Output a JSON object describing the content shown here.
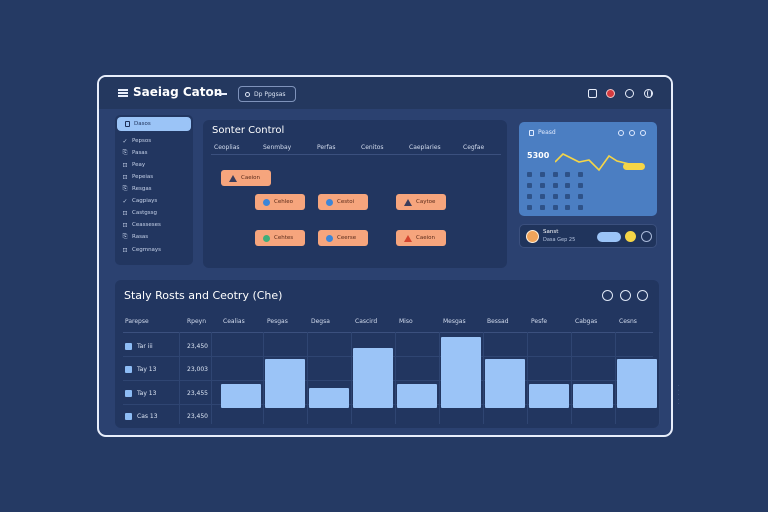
{
  "header": {
    "title": "Saeiag Caton",
    "search_label": "Dp Ppgsas"
  },
  "sidebar": {
    "active": "Dasos",
    "items": [
      {
        "label": "Pepsos",
        "glyph": "✓"
      },
      {
        "label": "Pasas",
        "glyph": "⎘"
      },
      {
        "label": "Peay",
        "glyph": "⊡"
      },
      {
        "label": "Pepeias",
        "glyph": "⊡"
      },
      {
        "label": "Resgas",
        "glyph": "⎘"
      },
      {
        "label": "Cagpiays",
        "glyph": "✓"
      },
      {
        "label": "Castgssg",
        "glyph": "⊡"
      },
      {
        "label": "Ceasseses",
        "glyph": "⊡"
      },
      {
        "label": "Rasas",
        "glyph": "⎘"
      },
      {
        "label": "Cegmnays",
        "glyph": "⊡"
      }
    ]
  },
  "control_panel": {
    "title": "Sonter Control",
    "columns": [
      "Ceoplias",
      "Senmbay",
      "Perfas",
      "Cenitos",
      "Caeplaries",
      "Cegfae"
    ],
    "chips": [
      {
        "label": "Caeion",
        "icon": "triangle"
      },
      {
        "label": "Cehleo",
        "icon": "dot",
        "dot_color": "#3d86d8"
      },
      {
        "label": "Cestoi",
        "icon": "dot",
        "dot_color": "#3d86d8"
      },
      {
        "label": "Caytoe",
        "icon": "triangle"
      },
      {
        "label": "Cehtes",
        "icon": "dot",
        "dot_color": "#3fae7a"
      },
      {
        "label": "Ceerse",
        "icon": "dot",
        "dot_color": "#3d86d8"
      },
      {
        "label": "Caeion",
        "icon": "triangle-red"
      }
    ]
  },
  "chart_card": {
    "title": "Peasd",
    "value": "5300"
  },
  "user": {
    "name": "Sanst",
    "subtitle": "Dasa Gep 25"
  },
  "stats": {
    "title": "Staly Rosts and Ceotry (Che)",
    "row_header": "Parepse",
    "value_header": "Rpeyn",
    "rows": [
      {
        "label": "Tar iii",
        "value": "23,450"
      },
      {
        "label": "Tay 13",
        "value": "23,003"
      },
      {
        "label": "Tay 13",
        "value": "23,455"
      },
      {
        "label": "Cas 13",
        "value": "23,450"
      }
    ]
  },
  "chart_data": {
    "type": "bar",
    "categories": [
      "Cealias",
      "Pesgas",
      "Degsa",
      "Cascird",
      "Miso",
      "Mesgas",
      "Bessad",
      "Pesfe",
      "Cabgas",
      "Cesns"
    ],
    "values": [
      22,
      45,
      18,
      55,
      22,
      65,
      45,
      22,
      22,
      45
    ],
    "ylim": [
      0,
      70
    ]
  },
  "colors": {
    "bar": "#9bc4f7",
    "chip": "#f6a57d",
    "accent_yellow": "#f5d547"
  }
}
